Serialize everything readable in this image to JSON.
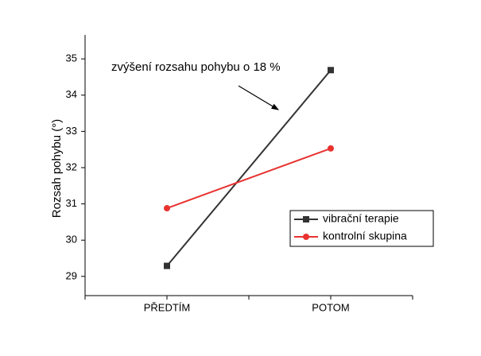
{
  "chart_data": {
    "type": "line",
    "y_label": "Rozsah pohybu (°)",
    "annotation": "zvýšení rozsahu pohybu o 18 %",
    "categories": [
      "PŘEDTÍM",
      "POTOM"
    ],
    "series": [
      {
        "name": "vibrační terapie",
        "color": "#333333",
        "marker": "square",
        "values": [
          29.29,
          34.69
        ]
      },
      {
        "name": "kontrolní skupina",
        "color": "#e8322f",
        "marker": "circle",
        "values": [
          30.88,
          32.53
        ]
      }
    ],
    "ylim": [
      28.47,
      35.66
    ],
    "yticks": [
      29,
      30,
      31,
      32,
      33,
      34,
      35
    ]
  }
}
